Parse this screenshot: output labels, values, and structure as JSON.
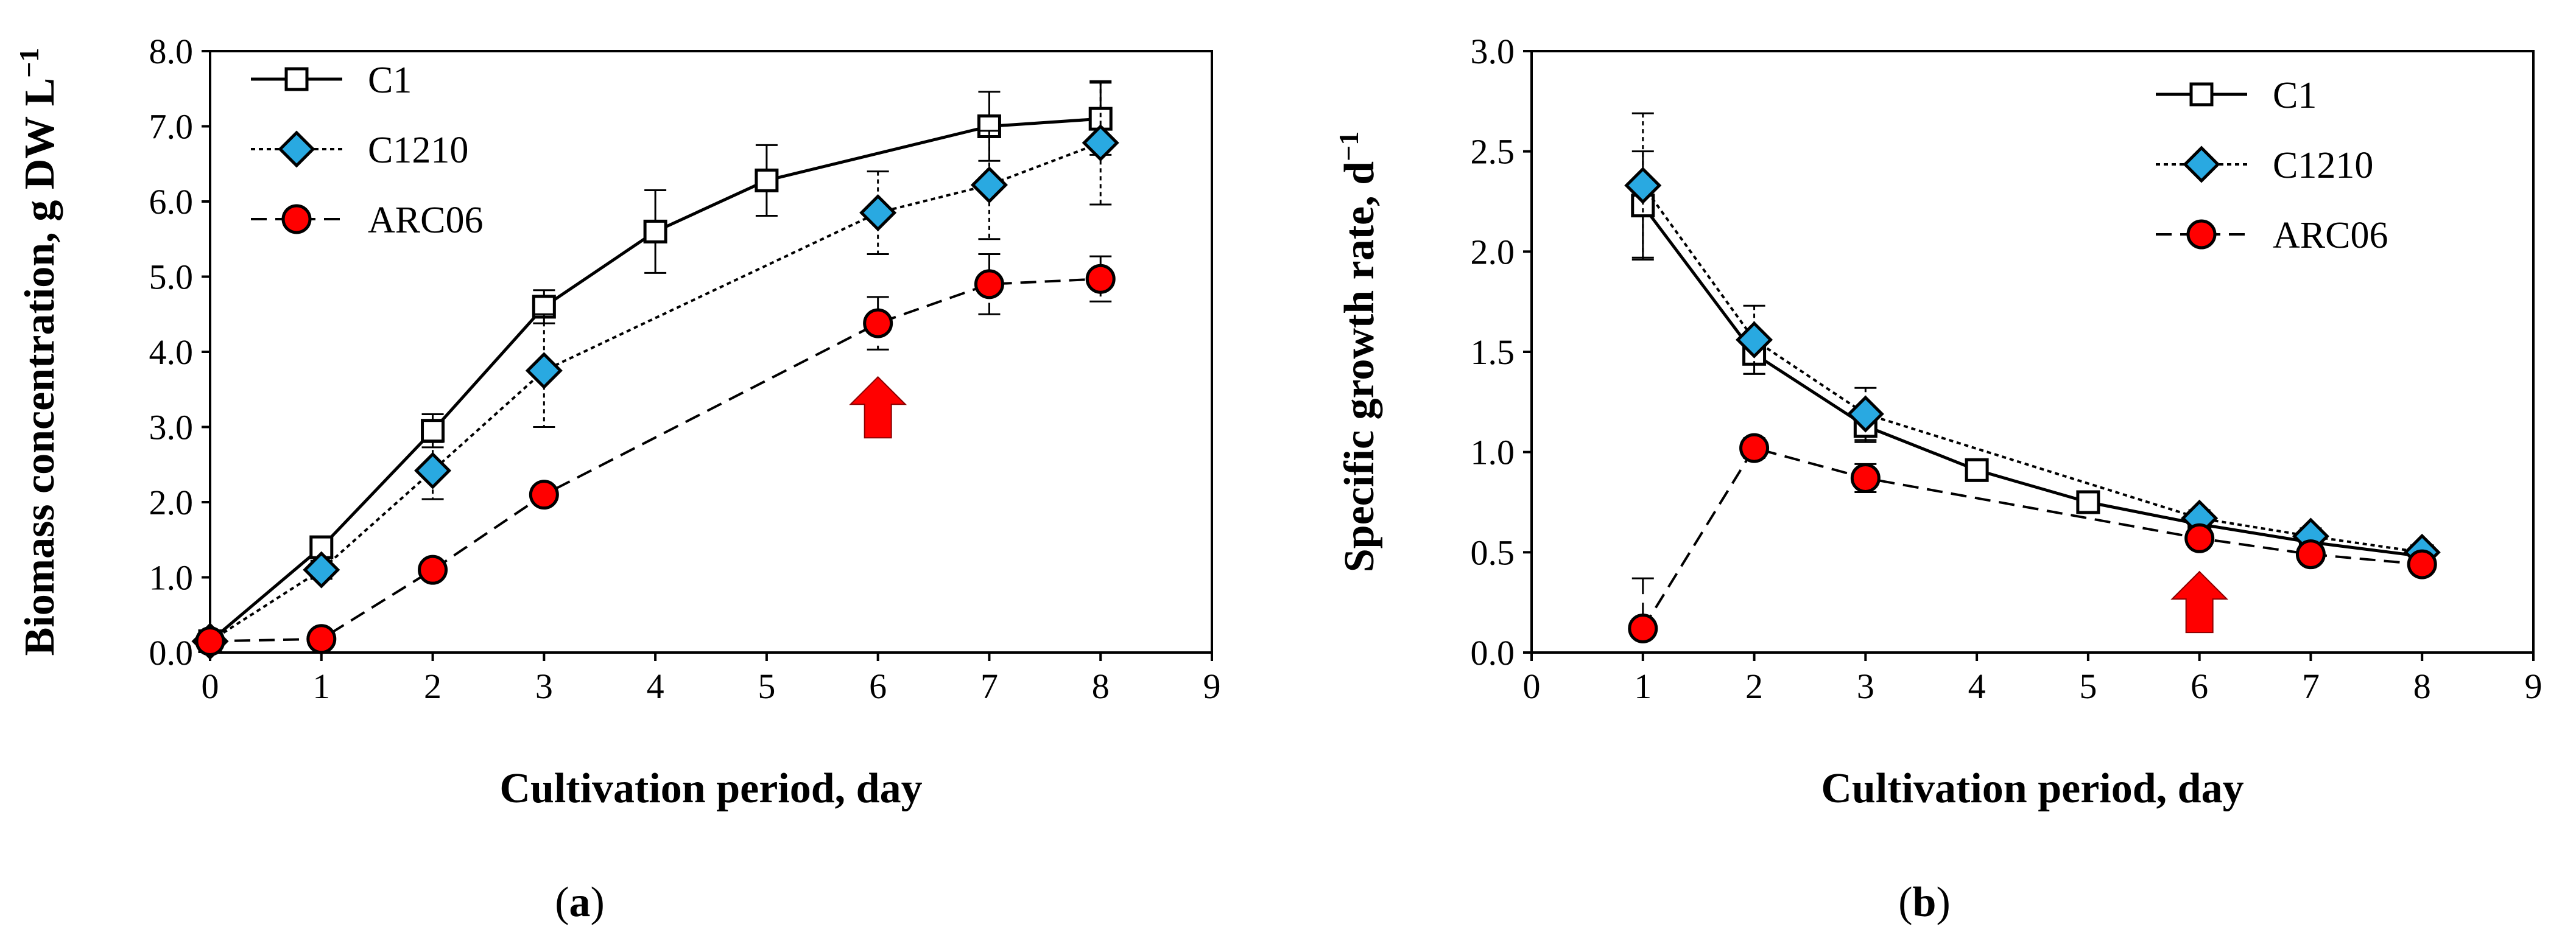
{
  "chart_data": [
    {
      "type": "line",
      "panel": "a",
      "panel_label": "(a)",
      "xlabel": "Cultivation period, day",
      "ylabel": "Biomass concentration, g DW L",
      "ylabel_sup": "−1",
      "xlim": [
        0,
        9
      ],
      "ylim": [
        0,
        8
      ],
      "xticks": [
        0,
        1,
        2,
        3,
        4,
        5,
        6,
        7,
        8,
        9
      ],
      "yticks": [
        "0.0",
        "1.0",
        "2.0",
        "3.0",
        "4.0",
        "5.0",
        "6.0",
        "7.0",
        "8.0"
      ],
      "legend_position": "top-left",
      "arrow_at_x": 6,
      "series": [
        {
          "name": "C1",
          "style": "solid",
          "marker": "square",
          "color": "#ffffff",
          "x": [
            0,
            1,
            2,
            3,
            4,
            5,
            7,
            8
          ],
          "y": [
            0.15,
            1.4,
            2.95,
            4.6,
            5.6,
            6.28,
            7.0,
            7.1
          ],
          "err": [
            0.1,
            0.12,
            0.22,
            0.22,
            0.55,
            0.47,
            0.46,
            0.48
          ]
        },
        {
          "name": "C1210",
          "style": "dotted",
          "marker": "diamond",
          "color": "#29a9e1",
          "x": [
            0,
            1,
            2,
            3,
            6,
            7,
            8
          ],
          "y": [
            0.15,
            1.1,
            2.42,
            3.75,
            5.85,
            6.22,
            6.78
          ],
          "err": [
            0.1,
            0.12,
            0.38,
            0.75,
            0.55,
            0.72,
            0.82
          ]
        },
        {
          "name": "ARC06",
          "style": "dashed",
          "marker": "circle",
          "color": "#ff0000",
          "x": [
            0,
            1,
            2,
            3,
            6,
            7,
            8
          ],
          "y": [
            0.15,
            0.18,
            1.1,
            2.1,
            4.38,
            4.9,
            4.97
          ],
          "err": [
            0.05,
            0.05,
            0.08,
            0.08,
            0.35,
            0.4,
            0.3
          ]
        }
      ]
    },
    {
      "type": "line",
      "panel": "b",
      "panel_label": "(b)",
      "xlabel": "Cultivation period, day",
      "ylabel": "Specific growth rate, d",
      "ylabel_sup": "−1",
      "xlim": [
        0,
        9
      ],
      "ylim": [
        0,
        3
      ],
      "xticks": [
        0,
        1,
        2,
        3,
        4,
        5,
        6,
        7,
        8,
        9
      ],
      "yticks": [
        "0.0",
        "0.5",
        "1.0",
        "1.5",
        "2.0",
        "2.5",
        "3.0"
      ],
      "legend_position": "top-right",
      "arrow_at_x": 6,
      "series": [
        {
          "name": "C1",
          "style": "solid",
          "marker": "square",
          "color": "#ffffff",
          "x": [
            1,
            2,
            3,
            4,
            5,
            6,
            7,
            8
          ],
          "y": [
            2.23,
            1.49,
            1.13,
            0.91,
            0.75,
            0.64,
            0.55,
            0.48
          ],
          "err": [
            0.27,
            0.1,
            0.08,
            0.03,
            0.03,
            0.03,
            0.03,
            0.02
          ]
        },
        {
          "name": "C1210",
          "style": "dotted",
          "marker": "diamond",
          "color": "#29a9e1",
          "x": [
            1,
            2,
            3,
            6,
            7,
            8
          ],
          "y": [
            2.33,
            1.56,
            1.19,
            0.67,
            0.58,
            0.5
          ],
          "err": [
            0.36,
            0.17,
            0.13,
            0.04,
            0.04,
            0.03
          ]
        },
        {
          "name": "ARC06",
          "style": "dashed",
          "marker": "circle",
          "color": "#ff0000",
          "x": [
            1,
            2,
            3,
            6,
            7,
            8
          ],
          "y": [
            0.12,
            1.02,
            0.87,
            0.57,
            0.49,
            0.44
          ],
          "err": [
            0.25,
            0.05,
            0.07,
            0.03,
            0.03,
            0.03
          ]
        }
      ]
    }
  ]
}
